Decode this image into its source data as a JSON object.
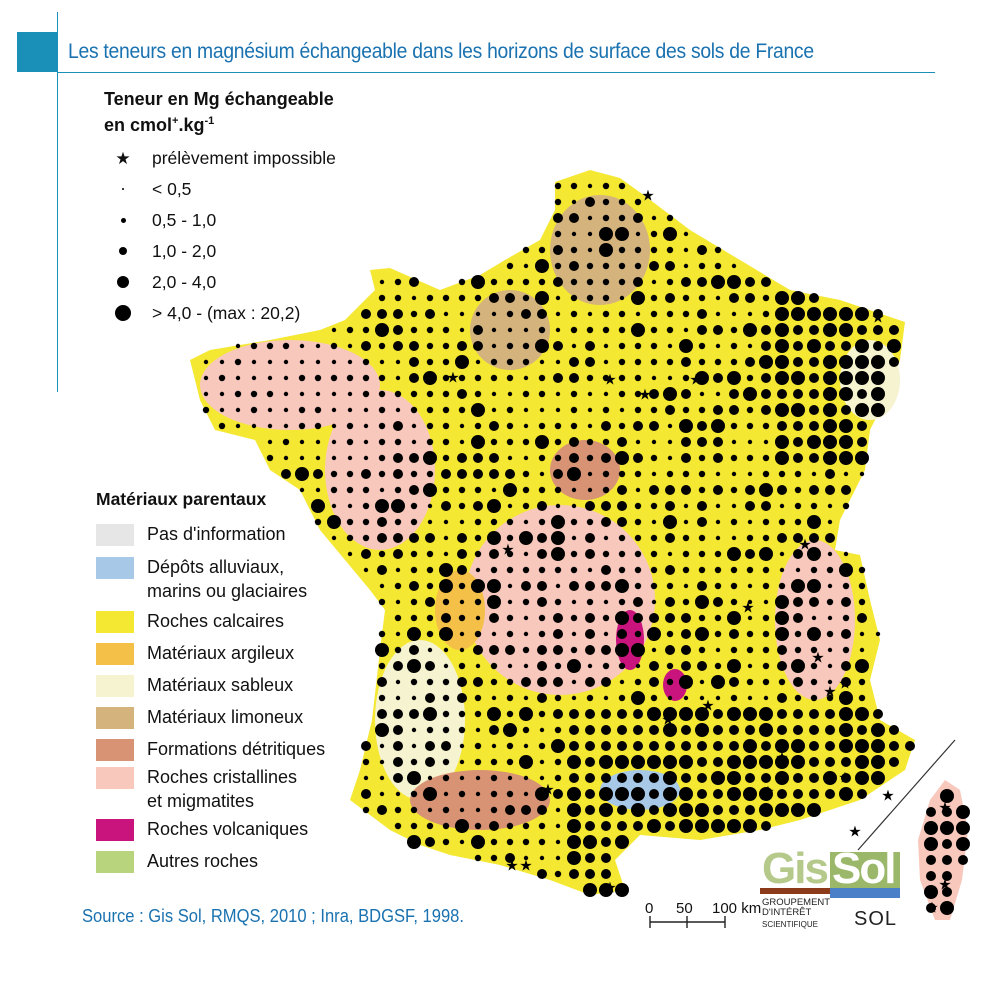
{
  "title": "Les teneurs en magnésium échangeable dans les horizons de surface des sols de France",
  "mg_legend": {
    "title_line1": "Teneur en Mg échangeable",
    "title_line2_pre": "en cmol",
    "title_line2_sup1": "+",
    "title_line2_mid": ".kg",
    "title_line2_sup2": "-1",
    "items": [
      {
        "label": "prélèvement impossible",
        "symbol": "star"
      },
      {
        "label": "< 0,5",
        "symbol": "dot",
        "size": 2
      },
      {
        "label": "0,5 - 1,0",
        "symbol": "dot",
        "size": 5
      },
      {
        "label": "1,0 - 2,0",
        "symbol": "dot",
        "size": 8
      },
      {
        "label": "2,0 - 4,0",
        "symbol": "dot",
        "size": 12
      },
      {
        "label": "> 4,0 - (max : 20,2)",
        "symbol": "dot",
        "size": 16
      }
    ]
  },
  "materials_legend": {
    "title": "Matériaux parentaux",
    "items": [
      {
        "label": "Pas d'information",
        "color": "#e6e6e6"
      },
      {
        "label": "Dépôts alluviaux,\nmarins ou glaciaires",
        "color": "#a8c8e8"
      },
      {
        "label": "Roches calcaires",
        "color": "#f4e832"
      },
      {
        "label": "Matériaux argileux",
        "color": "#f5c048"
      },
      {
        "label": "Matériaux sableux",
        "color": "#f6f3d0"
      },
      {
        "label": "Matériaux limoneux",
        "color": "#d4b47c"
      },
      {
        "label": "Formations détritiques",
        "color": "#d89274"
      },
      {
        "label": "Roches cristallines\net migmatites",
        "color": "#f8c8bc"
      },
      {
        "label": "Roches volcaniques",
        "color": "#c8147c"
      },
      {
        "label": "Autres roches",
        "color": "#b8d47c"
      }
    ]
  },
  "source": "Source : Gis Sol, RMQS, 2010 ; Inra, BDGSF, 1998.",
  "scale": {
    "labels": [
      "0",
      "50",
      "100 km"
    ]
  },
  "logo": {
    "gis": "Gis",
    "sol": "Sol",
    "sub_line1": "GROUPEMENT",
    "sub_line2": "D'INTÉRÊT",
    "sub_line3": "SCIENTIFIQUE",
    "sol_small": "SOL"
  },
  "colors": {
    "accent": "#1a8fb8",
    "title": "#1a72b0"
  }
}
